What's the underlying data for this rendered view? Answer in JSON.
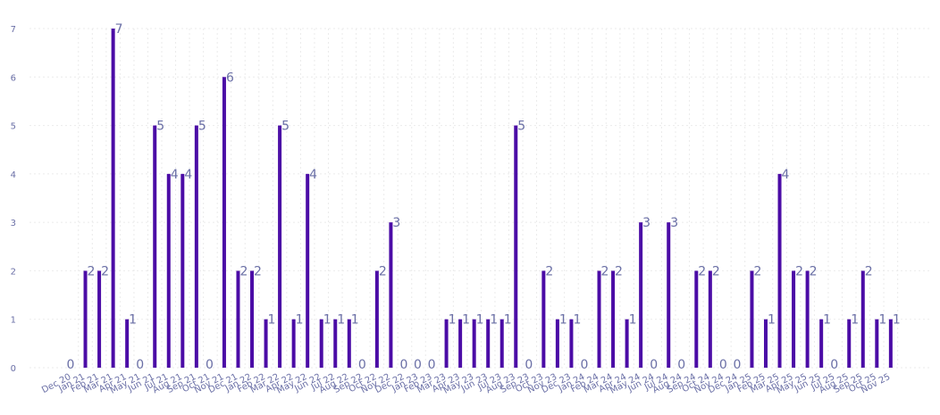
{
  "chart_data": {
    "type": "bar",
    "title": "",
    "xlabel": "",
    "ylabel": "",
    "ylim": [
      0,
      7
    ],
    "yticks": [
      0,
      1,
      2,
      3,
      4,
      5,
      6,
      7
    ],
    "grid": true,
    "bar_color": "#4b0ca6",
    "label_color": "#6a6fa6",
    "categories": [
      "Dec 20",
      "Jan 21",
      "Feb 21",
      "Mar 21",
      "Apr 21",
      "May 21",
      "Jun 21",
      "Jul 21",
      "Aug 21",
      "Sep 21",
      "Oct 21",
      "Nov 21",
      "Dec 21",
      "Jan 22",
      "Feb 22",
      "Mar 22",
      "Apr 22",
      "May 22",
      "Jun 22",
      "Jul 22",
      "Aug 22",
      "Sep 22",
      "Oct 22",
      "Nov 22",
      "Dec 22",
      "Jan 23",
      "Feb 23",
      "Mar 23",
      "Apr 23",
      "May 23",
      "Jun 23",
      "Jul 23",
      "Aug 23",
      "Sep 23",
      "Oct 23",
      "Nov 23",
      "Dec 23",
      "Jan 24",
      "Feb 24",
      "Mar 24",
      "Apr 24",
      "May 24",
      "Jun 24",
      "Jul 24",
      "Aug 24",
      "Sep 24",
      "Oct 24",
      "Nov 24",
      "Dec 24",
      "Jan 25",
      "Feb 25",
      "Mar 25",
      "Apr 25",
      "May 25",
      "Jun 25",
      "Jul 25",
      "Aug 25",
      "Sep 25",
      "Oct 25",
      "Nov 25"
    ],
    "values": [
      0,
      2,
      2,
      7,
      1,
      0,
      5,
      4,
      4,
      5,
      0,
      6,
      2,
      2,
      1,
      5,
      1,
      4,
      1,
      1,
      1,
      0,
      2,
      3,
      0,
      0,
      0,
      1,
      1,
      1,
      1,
      1,
      5,
      0,
      2,
      1,
      1,
      0,
      2,
      2,
      1,
      3,
      0,
      3,
      0,
      2,
      2,
      0,
      0,
      2,
      1,
      4,
      2,
      2,
      1,
      0,
      1,
      2,
      1,
      1
    ]
  }
}
